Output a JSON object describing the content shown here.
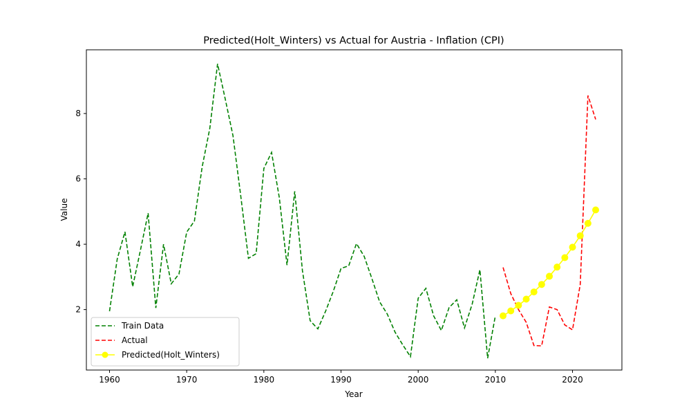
{
  "chart_data": {
    "type": "line",
    "title": "Predicted(Holt_Winters) vs Actual for Austria - Inflation (CPI)",
    "xlabel": "Year",
    "ylabel": "Value",
    "xlim": [
      1957,
      2026.4
    ],
    "ylim": [
      0.15,
      9.95
    ],
    "xticks": [
      1960,
      1970,
      1980,
      1990,
      2000,
      2010,
      2020
    ],
    "yticks": [
      2,
      4,
      6,
      8
    ],
    "grid": false,
    "legend_position": "lower-left",
    "series": [
      {
        "name": "Train Data",
        "color": "#008000",
        "style": "dashed",
        "marker": "none",
        "x": [
          1960,
          1961,
          1962,
          1963,
          1964,
          1965,
          1966,
          1967,
          1968,
          1969,
          1970,
          1971,
          1972,
          1973,
          1974,
          1975,
          1976,
          1977,
          1978,
          1979,
          1980,
          1981,
          1982,
          1983,
          1984,
          1985,
          1986,
          1987,
          1988,
          1989,
          1990,
          1991,
          1992,
          1993,
          1994,
          1995,
          1996,
          1997,
          1998,
          1999,
          2000,
          2001,
          2002,
          2003,
          2004,
          2005,
          2006,
          2007,
          2008,
          2009,
          2010
        ],
        "values": [
          1.95,
          3.55,
          4.38,
          2.7,
          3.81,
          4.95,
          2.05,
          4.0,
          2.79,
          3.09,
          4.37,
          4.71,
          6.36,
          7.55,
          9.52,
          8.44,
          7.32,
          5.49,
          3.57,
          3.71,
          6.32,
          6.81,
          5.43,
          3.36,
          5.62,
          3.19,
          1.66,
          1.41,
          1.95,
          2.56,
          3.26,
          3.34,
          4.02,
          3.63,
          2.95,
          2.24,
          1.86,
          1.31,
          0.92,
          0.56,
          2.35,
          2.65,
          1.81,
          1.36,
          2.06,
          2.3,
          1.44,
          2.17,
          3.22,
          0.51,
          1.81
        ]
      },
      {
        "name": "Actual",
        "color": "#ff0000",
        "style": "dashed",
        "marker": "none",
        "x": [
          2011,
          2012,
          2013,
          2014,
          2015,
          2016,
          2017,
          2018,
          2019,
          2020,
          2021,
          2022,
          2023
        ],
        "values": [
          3.29,
          2.49,
          2.0,
          1.61,
          0.9,
          0.89,
          2.08,
          2.0,
          1.53,
          1.38,
          2.77,
          8.55,
          7.82
        ]
      },
      {
        "name": "Predicted(Holt_Winters)",
        "color": "#ffff00",
        "style": "solid",
        "marker": "circle",
        "x": [
          2011,
          2012,
          2013,
          2014,
          2015,
          2016,
          2017,
          2018,
          2019,
          2020,
          2021,
          2022,
          2023
        ],
        "values": [
          1.81,
          1.96,
          2.13,
          2.32,
          2.54,
          2.77,
          3.02,
          3.3,
          3.59,
          3.91,
          4.26,
          4.64,
          5.05
        ]
      }
    ]
  }
}
